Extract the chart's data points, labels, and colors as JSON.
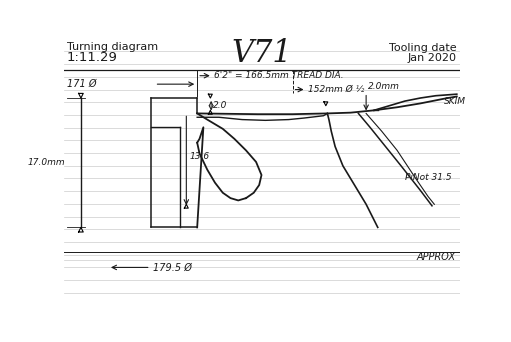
{
  "bg": "#ffffff",
  "lc": "#1a1a1a",
  "glc": "#cccccc",
  "title": "V71",
  "top_left1": "Turning diagram",
  "top_left2": "1:11.29",
  "top_right1": "Tooling date",
  "top_right2": "Jan 2020",
  "ann_tread": "6'2\" = 166.5mm TREAD DIA.",
  "ann_152": "152mm Ø ½",
  "ann_171": "171 Ø",
  "ann_20mm": "2.0mm",
  "ann_20": "2.0",
  "ann_136": "13.6",
  "ann_170": "17.0mm",
  "ann_1795": "179.5 Ø",
  "ann_skim": "SKIM",
  "ann_pivot": "PiNot 31.5",
  "ann_approx": "APPROX"
}
